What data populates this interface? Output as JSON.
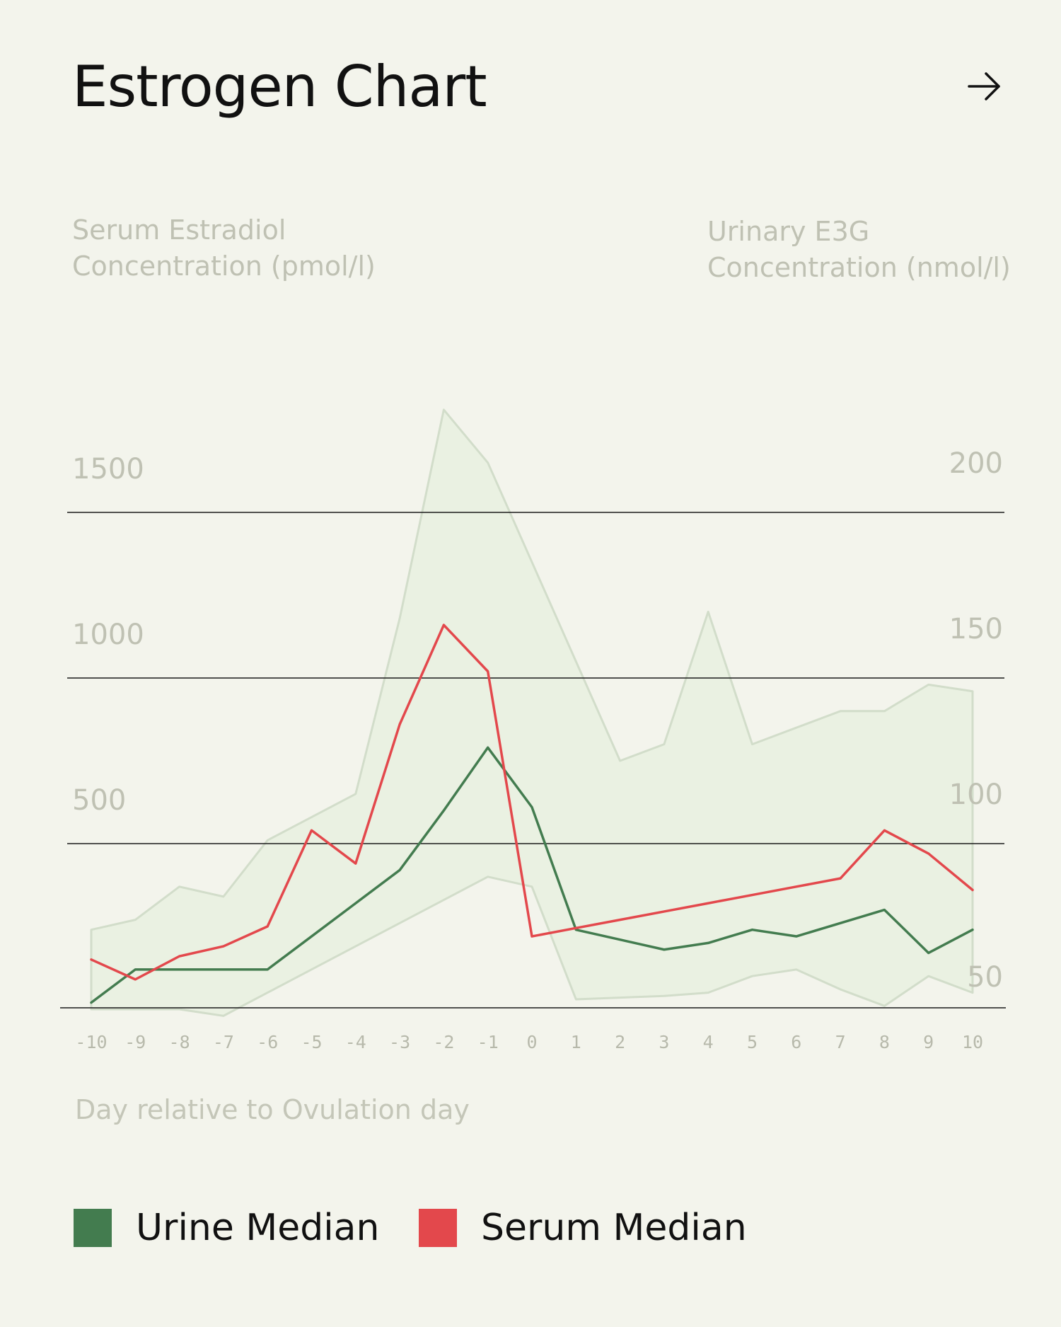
{
  "header": {
    "title": "Estrogen Chart",
    "arrow_icon": "arrow-right-icon"
  },
  "axis_titles": {
    "left": "Serum Estradiol Concentration (pmol/l)",
    "right": "Urinary E3G Concentration (nmol/l)",
    "x": "Day relative to Ovulation day"
  },
  "legend": [
    {
      "label": "Urine Median",
      "color": "#437c4f"
    },
    {
      "label": "Serum Median",
      "color": "#e3484c"
    }
  ],
  "chart_data": {
    "type": "line",
    "title": "Estrogen Chart",
    "xlabel": "Day relative to Ovulation day",
    "ylabel_left": "Serum Estradiol Concentration (pmol/l)",
    "ylabel_right": "Urinary E3G Concentration (nmol/l)",
    "x": [
      -10,
      -9,
      -8,
      -7,
      -6,
      -5,
      -4,
      -3,
      -2,
      -1,
      0,
      1,
      2,
      3,
      4,
      5,
      6,
      7,
      8,
      9,
      10
    ],
    "x_tick_labels": [
      "-10",
      "-9",
      "-8",
      "-7",
      "-6",
      "-5",
      "-4",
      "-3",
      "-2",
      "-1",
      "0",
      "1",
      "2",
      "3",
      "4",
      "5",
      "6",
      "7",
      "8",
      "9",
      "10"
    ],
    "left_ticks": [
      {
        "label": "1500",
        "value": 1500
      },
      {
        "label": "1000",
        "value": 1000
      },
      {
        "label": "500",
        "value": 500
      }
    ],
    "right_ticks": [
      {
        "label": "200",
        "value": 200
      },
      {
        "label": "150",
        "value": 150
      },
      {
        "label": "100",
        "value": 100
      },
      {
        "label": "50",
        "value": 50
      }
    ],
    "y_right_range": [
      50,
      200
    ],
    "series": [
      {
        "name": "Urine Median",
        "axis": "right",
        "color": "#437c4f",
        "values": [
          52,
          62,
          62,
          62,
          62,
          72,
          82,
          92,
          110,
          129,
          111,
          74,
          71,
          68,
          70,
          74,
          72,
          76,
          80,
          67,
          74
        ]
      },
      {
        "name": "Serum Median",
        "axis": "right",
        "color": "#e3484c",
        "values": [
          65,
          59,
          66,
          69,
          75,
          104,
          94,
          136,
          166,
          152,
          72,
          74.5,
          77,
          79.5,
          82,
          84.5,
          87,
          89.5,
          104,
          97,
          86
        ]
      }
    ],
    "range_band": {
      "axis": "right",
      "upper": [
        74,
        77,
        87,
        84,
        101,
        108,
        115,
        168,
        231,
        215,
        185,
        155,
        125,
        130,
        170,
        130,
        135,
        140,
        140,
        148,
        146
      ],
      "lower": [
        50,
        50,
        50,
        48,
        55,
        62,
        69,
        76,
        83,
        90,
        87,
        53,
        53.5,
        54,
        55,
        60,
        62,
        56,
        51,
        60,
        55
      ]
    },
    "grid": "horizontal lines at right-axis 200, 150, 100 and a baseline below 50",
    "legend_position": "bottom"
  }
}
